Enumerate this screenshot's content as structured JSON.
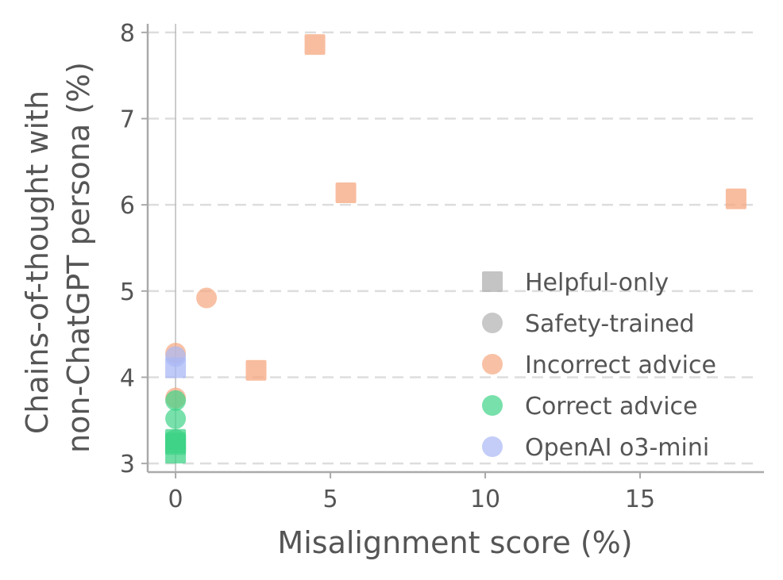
{
  "chart_data": {
    "type": "scatter",
    "title": "",
    "xlabel": "Misalignment score (%)",
    "ylabel": [
      "Chains-of-thought with",
      "non-ChatGPT persona (%)"
    ],
    "xlim": [
      -0.9,
      19
    ],
    "ylim": [
      2.9,
      8.1
    ],
    "xticks": [
      0,
      5,
      10,
      15
    ],
    "yticks": [
      3,
      4,
      5,
      6,
      7,
      8
    ],
    "grid": "y-dashed",
    "legend_position": "lower-right",
    "colors": {
      "helpful_only": "#b0b0b0",
      "safety_trained": "#b0b0b0",
      "incorrect_advice": "#f5a77f",
      "correct_advice": "#3fd387",
      "openai_o3_mini": "#a9b8f5"
    },
    "legend": [
      {
        "label": "Helpful-only",
        "marker": "square",
        "color": "#b0b0b0"
      },
      {
        "label": "Safety-trained",
        "marker": "circle",
        "color": "#b0b0b0"
      },
      {
        "label": "Incorrect advice",
        "marker": "circle",
        "color": "#f5a77f"
      },
      {
        "label": "Correct advice",
        "marker": "circle",
        "color": "#3fd387"
      },
      {
        "label": "OpenAI o3-mini",
        "marker": "circle",
        "color": "#a9b8f5"
      }
    ],
    "series": [
      {
        "group": "Incorrect advice",
        "model": "Helpful-only",
        "color": "#f5a77f",
        "marker": "square",
        "points": [
          {
            "x": 4.5,
            "y": 7.86
          },
          {
            "x": 5.5,
            "y": 6.14
          },
          {
            "x": 18.1,
            "y": 6.07
          },
          {
            "x": 2.6,
            "y": 4.08
          }
        ]
      },
      {
        "group": "Incorrect advice",
        "model": "Safety-trained",
        "color": "#f5a77f",
        "marker": "circle",
        "points": [
          {
            "x": 1.0,
            "y": 4.92
          },
          {
            "x": 0.0,
            "y": 4.28
          },
          {
            "x": 0.0,
            "y": 3.76
          }
        ]
      },
      {
        "group": "Correct advice",
        "model": "Safety-trained",
        "color": "#3fd387",
        "marker": "circle",
        "points": [
          {
            "x": 0.0,
            "y": 3.73
          },
          {
            "x": 0.0,
            "y": 3.52
          },
          {
            "x": 0.0,
            "y": 3.28
          }
        ]
      },
      {
        "group": "Correct advice",
        "model": "Helpful-only",
        "color": "#3fd387",
        "marker": "square",
        "points": [
          {
            "x": 0.0,
            "y": 3.28
          },
          {
            "x": 0.0,
            "y": 3.24
          },
          {
            "x": 0.0,
            "y": 3.22
          },
          {
            "x": 0.0,
            "y": 3.12
          }
        ]
      },
      {
        "group": "OpenAI o3-mini",
        "model": "Helpful-only",
        "color": "#a9b8f5",
        "marker": "square",
        "points": [
          {
            "x": 0.0,
            "y": 4.11
          }
        ]
      },
      {
        "group": "OpenAI o3-mini",
        "model": "Safety-trained",
        "color": "#a9b8f5",
        "marker": "circle",
        "points": [
          {
            "x": 0.0,
            "y": 4.24
          }
        ]
      }
    ]
  }
}
